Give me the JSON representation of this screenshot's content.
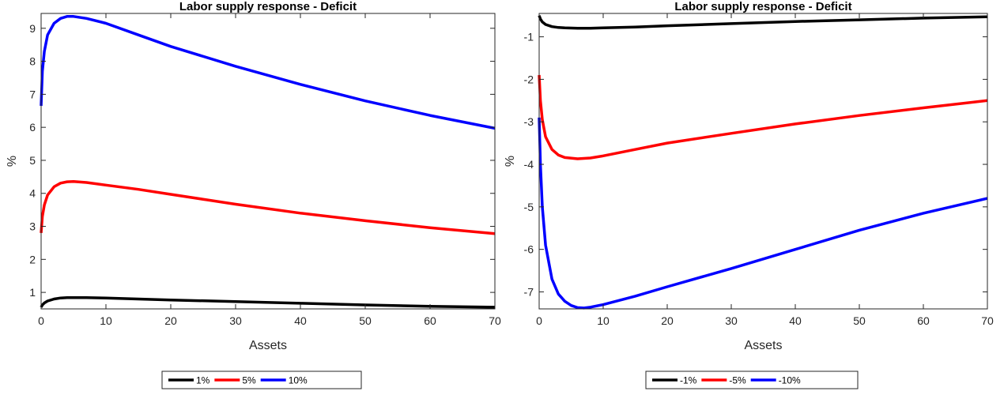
{
  "chart_data": [
    {
      "type": "line",
      "title": "Labor supply response - Deficit",
      "xlabel": "Assets",
      "ylabel": "%",
      "xlim": [
        0,
        70
      ],
      "ylim": [
        0.5,
        9.45
      ],
      "xticks": [
        0,
        10,
        20,
        30,
        40,
        50,
        60,
        70
      ],
      "yticks": [
        1,
        2,
        3,
        4,
        5,
        6,
        7,
        8,
        9
      ],
      "grid": false,
      "legend_position": "bottom, outside, horizontal",
      "series": [
        {
          "name": "1%",
          "color": "#000000",
          "x": [
            0,
            0.2,
            0.5,
            1,
            2,
            3,
            4,
            5,
            7,
            10,
            15,
            20,
            30,
            40,
            50,
            60,
            70
          ],
          "y": [
            0.55,
            0.62,
            0.68,
            0.74,
            0.8,
            0.83,
            0.84,
            0.84,
            0.84,
            0.83,
            0.8,
            0.77,
            0.72,
            0.67,
            0.62,
            0.58,
            0.55
          ]
        },
        {
          "name": "5%",
          "color": "#ff0000",
          "x": [
            0,
            0.2,
            0.5,
            1,
            2,
            3,
            4,
            5,
            7,
            10,
            15,
            20,
            30,
            40,
            50,
            60,
            70
          ],
          "y": [
            2.8,
            3.3,
            3.65,
            3.95,
            4.2,
            4.31,
            4.35,
            4.36,
            4.33,
            4.25,
            4.12,
            3.97,
            3.67,
            3.4,
            3.17,
            2.96,
            2.78
          ]
        },
        {
          "name": "10%",
          "color": "#0000ff",
          "x": [
            0,
            0.2,
            0.5,
            1,
            2,
            3,
            4,
            5,
            7,
            10,
            15,
            20,
            30,
            40,
            50,
            60,
            70
          ],
          "y": [
            6.65,
            7.7,
            8.3,
            8.8,
            9.15,
            9.3,
            9.36,
            9.36,
            9.3,
            9.15,
            8.8,
            8.45,
            7.85,
            7.3,
            6.8,
            6.36,
            5.97
          ]
        }
      ]
    },
    {
      "type": "line",
      "title": "Labor supply response - Deficit",
      "xlabel": "Assets",
      "ylabel": "%",
      "xlim": [
        0,
        70
      ],
      "ylim": [
        -7.4,
        -0.45
      ],
      "xticks": [
        0,
        10,
        20,
        30,
        40,
        50,
        60,
        70
      ],
      "yticks": [
        -7,
        -6,
        -5,
        -4,
        -3,
        -2,
        -1
      ],
      "grid": false,
      "legend_position": "bottom, outside, horizontal",
      "series": [
        {
          "name": "-1%",
          "color": "#000000",
          "x": [
            0,
            0.2,
            0.5,
            1,
            2,
            3,
            4,
            6,
            8,
            10,
            15,
            20,
            30,
            40,
            50,
            60,
            70
          ],
          "y": [
            -0.5,
            -0.58,
            -0.65,
            -0.71,
            -0.76,
            -0.78,
            -0.79,
            -0.8,
            -0.8,
            -0.79,
            -0.77,
            -0.74,
            -0.69,
            -0.64,
            -0.6,
            -0.56,
            -0.53
          ]
        },
        {
          "name": "-5%",
          "color": "#ff0000",
          "x": [
            0,
            0.2,
            0.5,
            1,
            2,
            3,
            4,
            6,
            8,
            10,
            15,
            20,
            30,
            40,
            50,
            60,
            70
          ],
          "y": [
            -1.9,
            -2.5,
            -2.95,
            -3.35,
            -3.65,
            -3.78,
            -3.84,
            -3.87,
            -3.85,
            -3.8,
            -3.65,
            -3.5,
            -3.27,
            -3.05,
            -2.85,
            -2.67,
            -2.5
          ]
        },
        {
          "name": "-10%",
          "color": "#0000ff",
          "x": [
            0,
            0.2,
            0.5,
            1,
            2,
            3,
            4,
            5,
            6,
            7,
            8,
            10,
            15,
            20,
            30,
            40,
            50,
            60,
            70
          ],
          "y": [
            -2.9,
            -4.0,
            -5.0,
            -5.9,
            -6.7,
            -7.05,
            -7.22,
            -7.32,
            -7.37,
            -7.38,
            -7.36,
            -7.3,
            -7.1,
            -6.88,
            -6.45,
            -6.0,
            -5.55,
            -5.15,
            -4.8
          ]
        }
      ]
    }
  ]
}
